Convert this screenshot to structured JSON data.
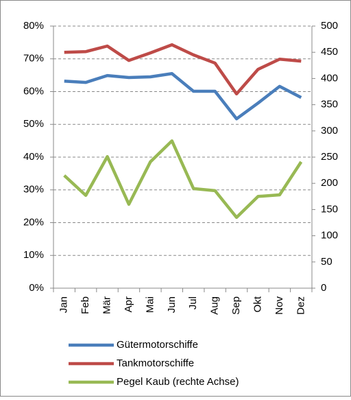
{
  "chart_data": {
    "type": "line",
    "categories": [
      "Jan",
      "Feb",
      "Mär",
      "Apr",
      "Mai",
      "Jun",
      "Jul",
      "Aug",
      "Sep",
      "Okt",
      "Nov",
      "Dez"
    ],
    "series": [
      {
        "name": "Gütermotorschiffe",
        "color": "#4a7ebb",
        "values": [
          63.2,
          62.8,
          64.9,
          64.3,
          64.5,
          65.5,
          60.1,
          60.1,
          51.7,
          56.5,
          61.6,
          58.2
        ]
      },
      {
        "name": "Tankmotorschiffe",
        "color": "#be4b48",
        "values": [
          72.0,
          72.2,
          73.9,
          69.5,
          71.8,
          74.3,
          71.2,
          68.7,
          59.3,
          66.8,
          69.9,
          69.3
        ]
      },
      {
        "name": "Pegel Kaub (rechte Achse)",
        "color": "#98b954",
        "axis": "y2",
        "values": [
          215,
          177,
          251,
          160,
          241,
          281,
          190,
          186,
          135,
          175,
          178,
          241
        ]
      }
    ],
    "ylim": [
      0,
      80
    ],
    "yticks": [
      {
        "value": 0,
        "label": "0%"
      },
      {
        "value": 10,
        "label": "10%"
      },
      {
        "value": 20,
        "label": "20%"
      },
      {
        "value": 30,
        "label": "30%"
      },
      {
        "value": 40,
        "label": "40%"
      },
      {
        "value": 50,
        "label": "50%"
      },
      {
        "value": 60,
        "label": "60%"
      },
      {
        "value": 70,
        "label": "70%"
      },
      {
        "value": 80,
        "label": "80%"
      }
    ],
    "y2lim": [
      0,
      500
    ],
    "y2ticks": [
      0,
      50,
      100,
      150,
      200,
      250,
      300,
      350,
      400,
      450,
      500
    ],
    "grid": true,
    "legend": "bottom"
  }
}
